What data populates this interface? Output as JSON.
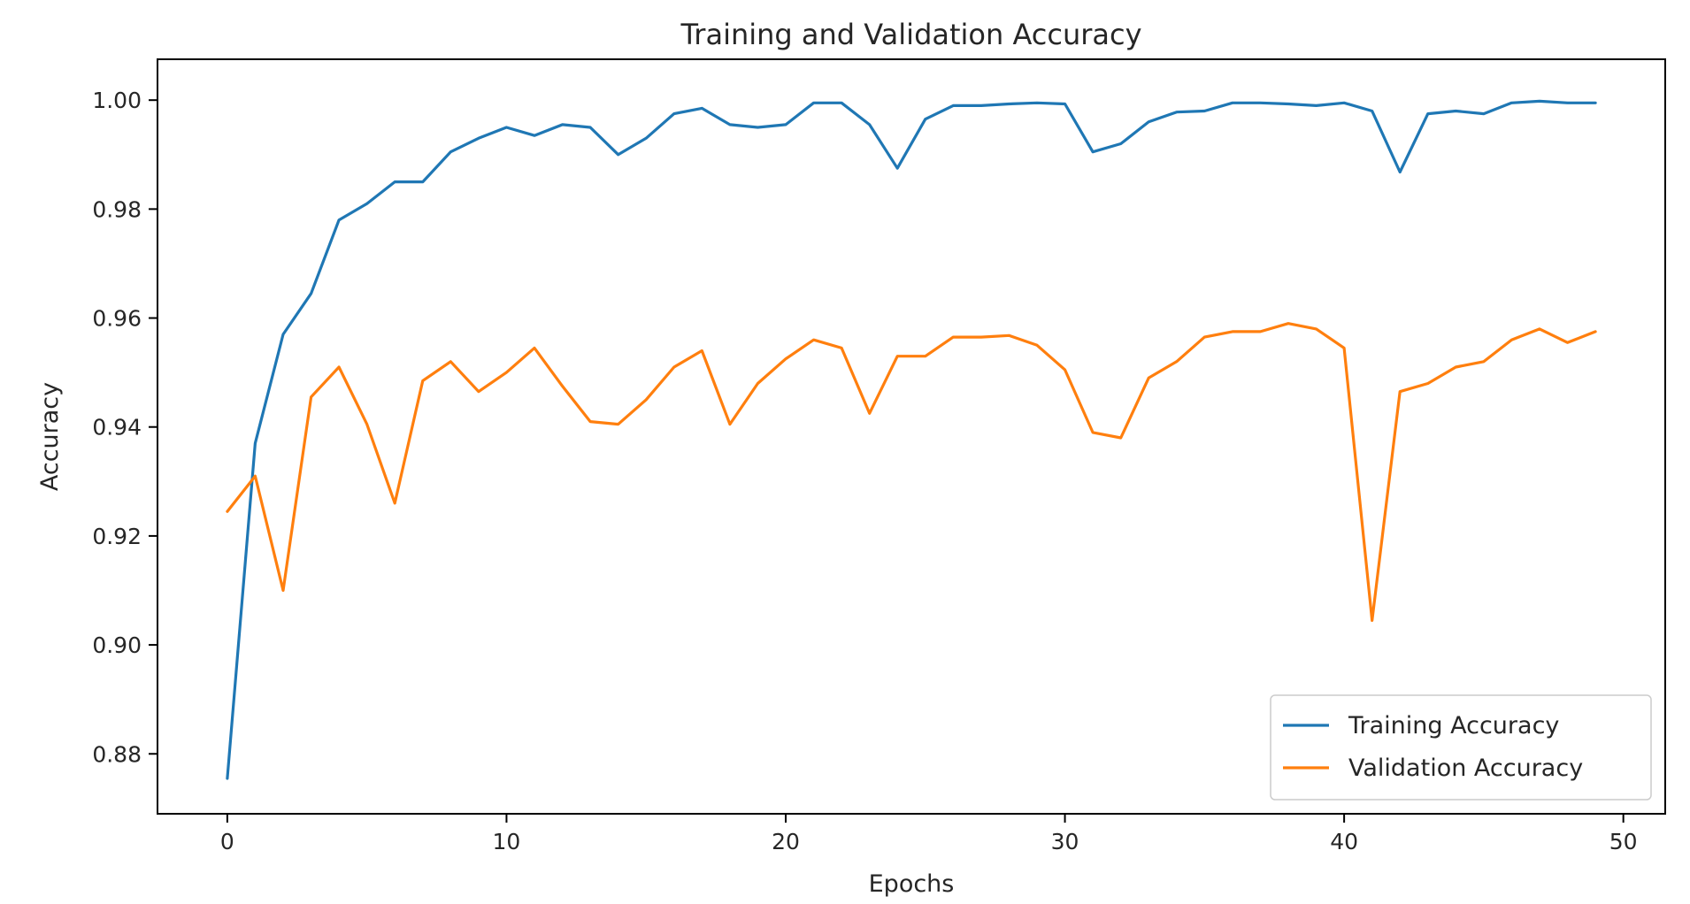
{
  "chart_data": {
    "type": "line",
    "title": "Training and Validation Accuracy",
    "xlabel": "Epochs",
    "ylabel": "Accuracy",
    "xlim": [
      -2.5,
      51.5
    ],
    "ylim": [
      0.869,
      1.0075
    ],
    "xticks": [
      0,
      10,
      20,
      30,
      40,
      50
    ],
    "xtick_labels": [
      "0",
      "10",
      "20",
      "30",
      "40",
      "50"
    ],
    "yticks": [
      0.88,
      0.9,
      0.92,
      0.94,
      0.96,
      0.98,
      1.0
    ],
    "ytick_labels": [
      "0.88",
      "0.90",
      "0.92",
      "0.94",
      "0.96",
      "0.98",
      "1.00"
    ],
    "grid": false,
    "legend_position": "lower-right",
    "x": [
      0,
      1,
      2,
      3,
      4,
      5,
      6,
      7,
      8,
      9,
      10,
      11,
      12,
      13,
      14,
      15,
      16,
      17,
      18,
      19,
      20,
      21,
      22,
      23,
      24,
      25,
      26,
      27,
      28,
      29,
      30,
      31,
      32,
      33,
      34,
      35,
      36,
      37,
      38,
      39,
      40,
      41,
      42,
      43,
      44,
      45,
      46,
      47,
      48,
      49
    ],
    "series": [
      {
        "name": "Training Accuracy",
        "color": "#1f77b4",
        "values": [
          0.8755,
          0.937,
          0.957,
          0.9645,
          0.978,
          0.981,
          0.985,
          0.985,
          0.9905,
          0.993,
          0.995,
          0.9935,
          0.9955,
          0.995,
          0.99,
          0.993,
          0.9975,
          0.9985,
          0.9955,
          0.995,
          0.9955,
          0.9995,
          0.9995,
          0.9955,
          0.9875,
          0.9965,
          0.999,
          0.999,
          0.9993,
          0.9995,
          0.9993,
          0.9905,
          0.992,
          0.996,
          0.9978,
          0.998,
          0.9995,
          0.9995,
          0.9993,
          0.999,
          0.9995,
          0.998,
          0.9868,
          0.9975,
          0.998,
          0.9975,
          0.9995,
          0.9998,
          0.9995,
          0.9995
        ]
      },
      {
        "name": "Validation Accuracy",
        "color": "#ff7f0e",
        "values": [
          0.9245,
          0.931,
          0.91,
          0.9455,
          0.951,
          0.9405,
          0.926,
          0.9485,
          0.952,
          0.9465,
          0.95,
          0.9545,
          0.9475,
          0.941,
          0.9405,
          0.945,
          0.951,
          0.954,
          0.9405,
          0.948,
          0.9525,
          0.956,
          0.9545,
          0.9425,
          0.953,
          0.953,
          0.9565,
          0.9565,
          0.9568,
          0.955,
          0.9505,
          0.939,
          0.938,
          0.949,
          0.952,
          0.9565,
          0.9575,
          0.9575,
          0.959,
          0.958,
          0.9545,
          0.9045,
          0.9465,
          0.948,
          0.951,
          0.952,
          0.956,
          0.958,
          0.9555,
          0.9575
        ]
      }
    ]
  }
}
